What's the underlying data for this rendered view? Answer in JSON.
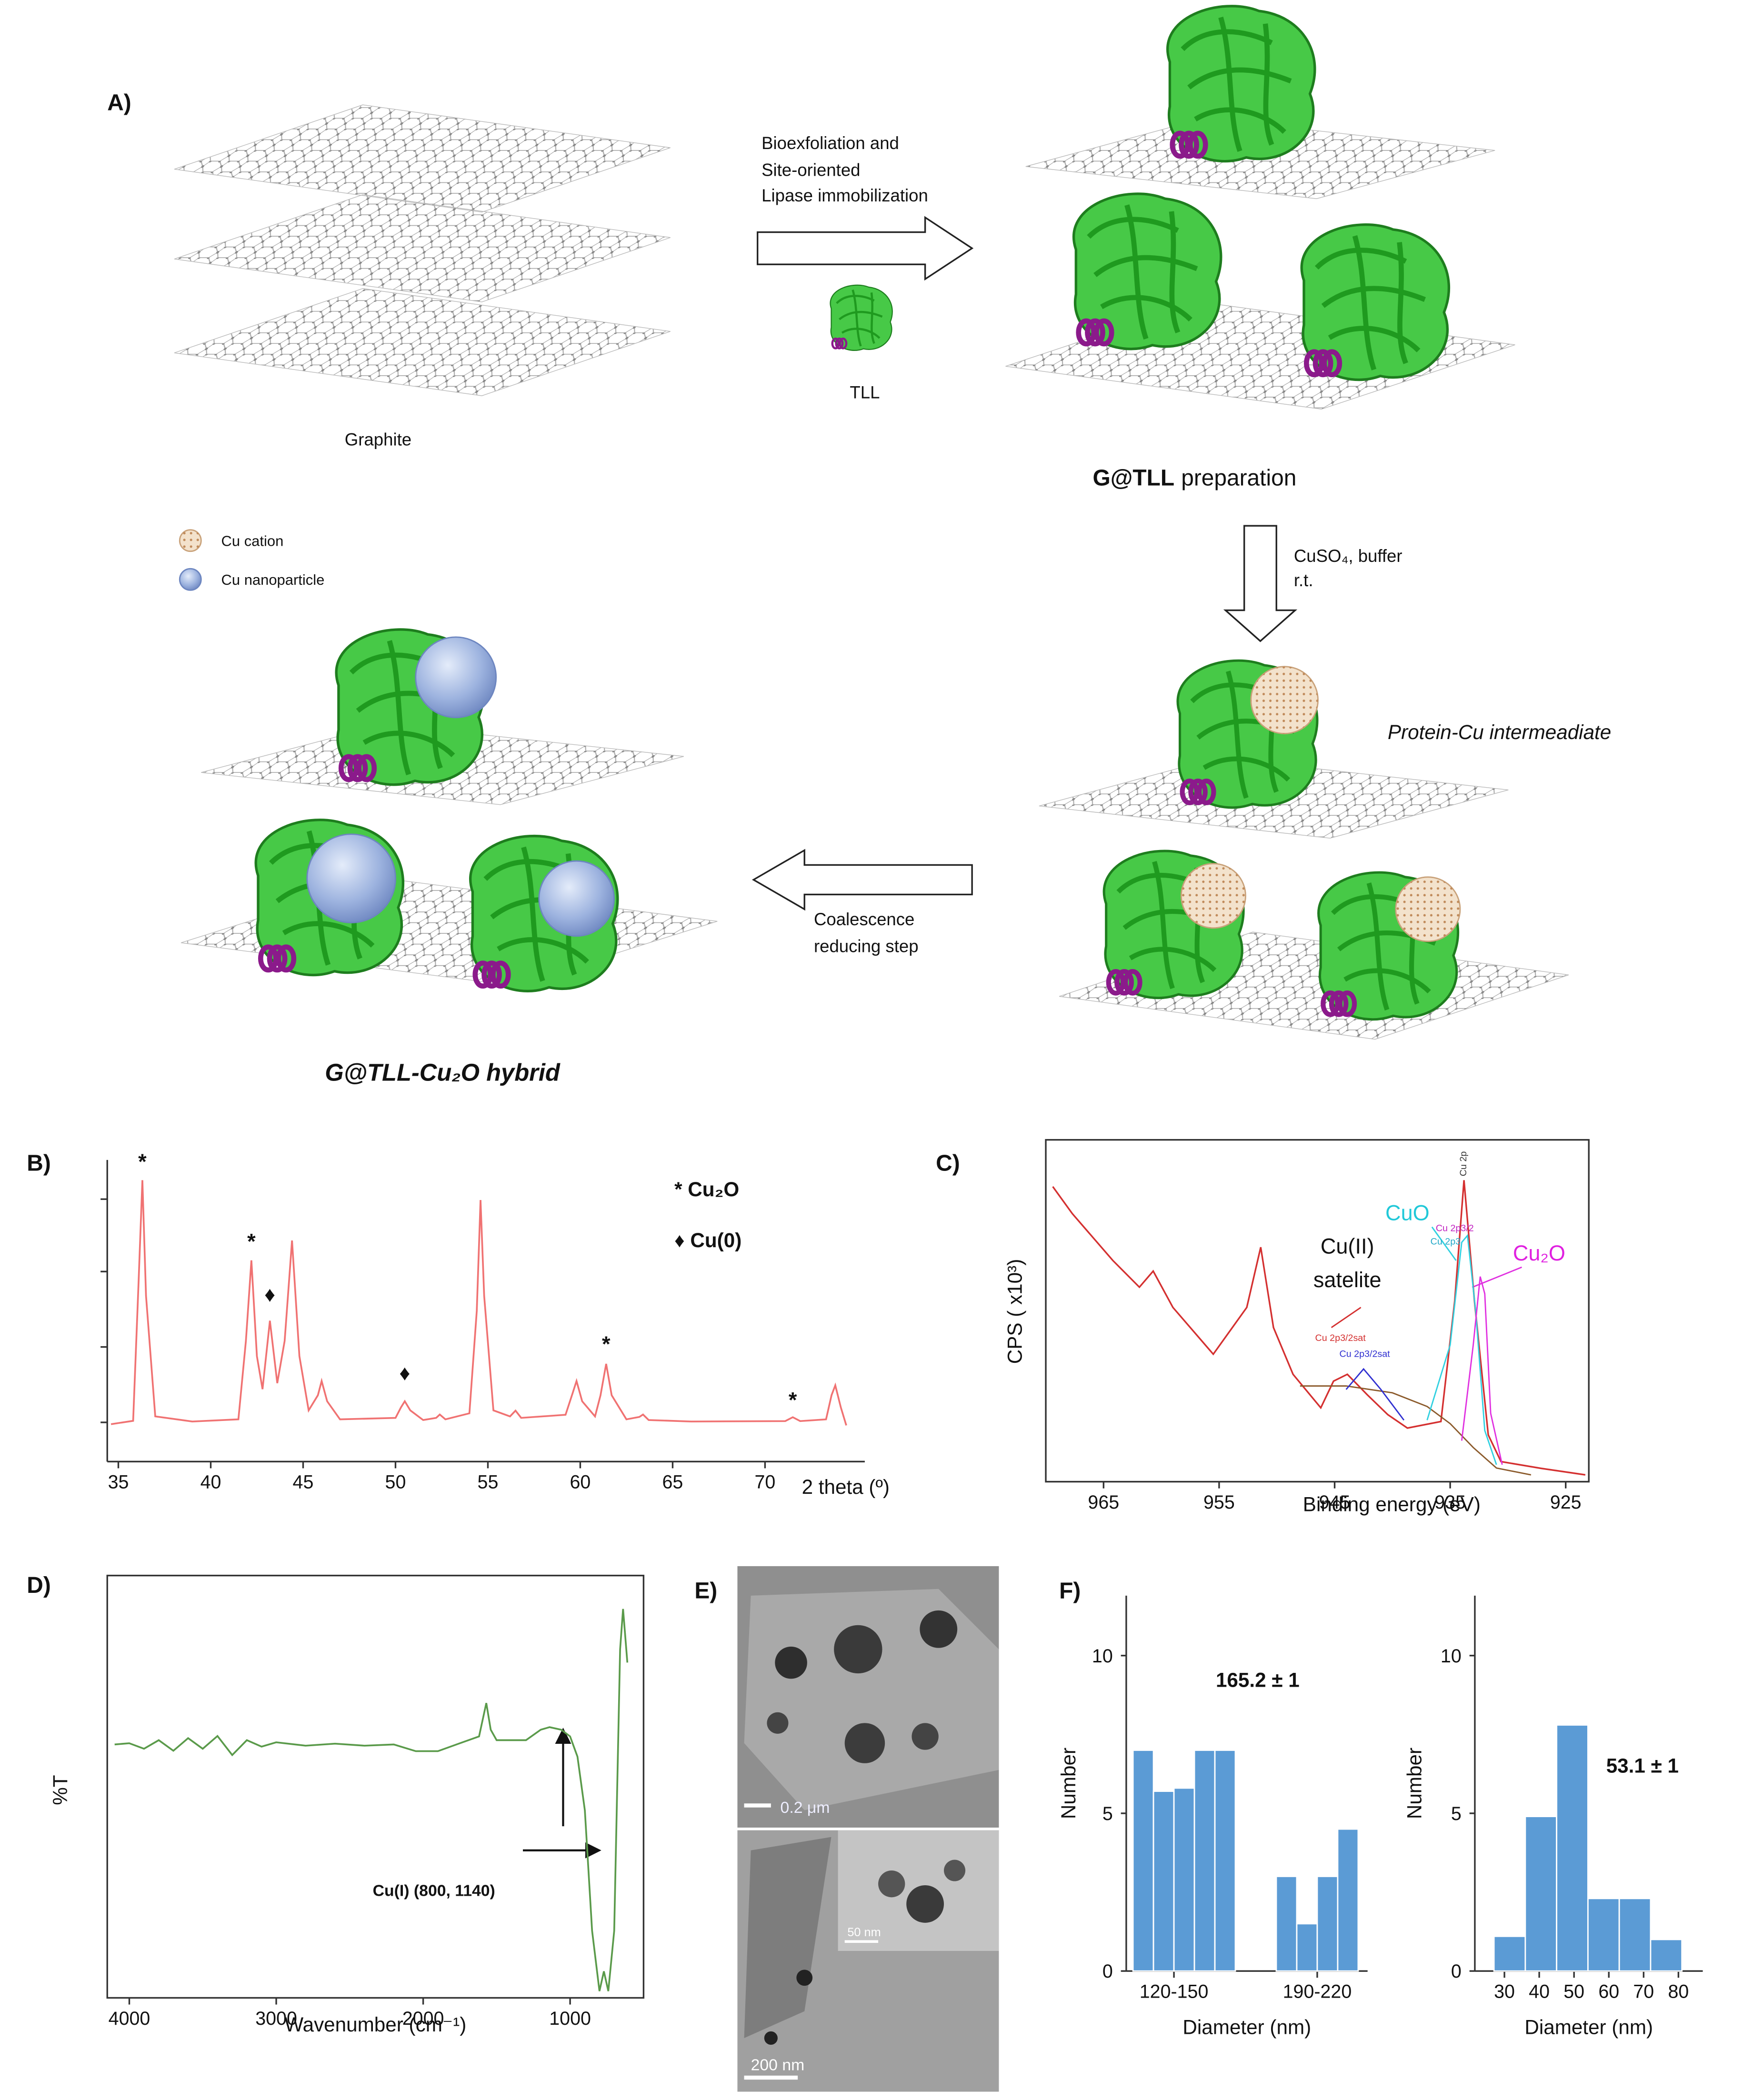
{
  "panel_labels": {
    "a": "A)",
    "b": "B)",
    "c": "C)",
    "d": "D)",
    "e": "E)",
    "f": "F)"
  },
  "scheme": {
    "graphite": "Graphite",
    "step1": [
      "Bioexfoliation and",
      "Site-oriented",
      "Lipase immobilization"
    ],
    "tll": "TLL",
    "gtll_bold": "G@TLL",
    "gtll_rest": "preparation",
    "legend": [
      "Cu cation",
      "Cu nanoparticle"
    ],
    "step2": [
      "CuSO₄, buffer",
      "r.t."
    ],
    "intermediate": "Protein-Cu intermeadiate",
    "step3": [
      "Coalescence",
      "reducing step"
    ],
    "hybrid": "G@TLL-Cu₂O hybrid"
  },
  "tem": {
    "scale_bars": [
      "0.2 μm",
      "50 nm",
      "200 nm"
    ]
  },
  "chart_data": [
    {
      "type": "line",
      "color": "#f07272",
      "x": [
        34.6,
        35.8,
        36.1,
        36.3,
        36.5,
        37,
        39,
        41.5,
        41.9,
        42.2,
        42.5,
        42.8,
        43.2,
        43.6,
        44,
        44.4,
        44.8,
        45.3,
        45.8,
        46,
        46.3,
        47,
        50,
        50.3,
        50.5,
        50.8,
        51.5,
        52.2,
        52.4,
        52.7,
        54,
        54.4,
        54.6,
        54.8,
        55.3,
        56.2,
        56.5,
        56.8,
        59.2,
        59.6,
        59.8,
        60.1,
        60.8,
        61.1,
        61.4,
        61.7,
        62.5,
        63.2,
        63.4,
        63.7,
        66,
        71.1,
        71.5,
        71.9,
        73.3,
        73.6,
        73.8,
        74.1,
        74.4
      ],
      "values": [
        12.4,
        13.5,
        60,
        93.3,
        55,
        15,
        13.3,
        14,
        40,
        66.7,
        35,
        24,
        46.7,
        26,
        40,
        73.3,
        35,
        17,
        22,
        26.7,
        20,
        14,
        14.5,
        18,
        20,
        17,
        13.8,
        14.5,
        15.6,
        14,
        16,
        50,
        86.7,
        55,
        17,
        15,
        16.9,
        14.5,
        15.5,
        23,
        26.7,
        20,
        15,
        22,
        32.4,
        22,
        14,
        14.8,
        15.6,
        13.8,
        13.3,
        13.4,
        14.7,
        13.4,
        14,
        22,
        25.3,
        18,
        12
      ],
      "xlim": [
        34.4,
        75.4
      ],
      "ylim": [
        0,
        100
      ],
      "xticks": [
        35,
        40,
        45,
        50,
        55,
        60,
        65,
        70
      ],
      "xlabel": "2 theta (º)",
      "legend": [
        "* Cu₂O",
        "♦ Cu(0)"
      ],
      "annotations": [
        {
          "text": "*",
          "x": 36.3,
          "y": 97
        },
        {
          "text": "*",
          "x": 42.2,
          "y": 70.5
        },
        {
          "text": "♦",
          "x": 43.2,
          "y": 53
        },
        {
          "text": "♦",
          "x": 50.5,
          "y": 27
        },
        {
          "text": "*",
          "x": 61.4,
          "y": 36.5
        },
        {
          "text": "*",
          "x": 71.5,
          "y": 18
        }
      ]
    },
    {
      "type": "line",
      "series": [
        {
          "color": "#d43030",
          "x": [
            969.4,
            967.7,
            964.2,
            961.9,
            960.7,
            959.0,
            955.5,
            952.6,
            951.4,
            950.3,
            948.6,
            946.2,
            945.1,
            943.9,
            942.2,
            940.4,
            938.7,
            935.8,
            934.6,
            933.8,
            932.9,
            931.7,
            930.6,
            927.1,
            923.3
          ],
          "values": [
            86.3,
            78.4,
            64.7,
            56.9,
            61.6,
            51.0,
            37.3,
            51.0,
            68.6,
            45.1,
            31.4,
            21.6,
            29.4,
            31.4,
            25.5,
            19.6,
            15.7,
            17.6,
            52.9,
            88.2,
            52.9,
            13.7,
            5.9,
            3.9,
            2.0
          ]
        },
        {
          "color": "#8b5a2b",
          "x": [
            948,
            944,
            940,
            937,
            935,
            933,
            931,
            928
          ],
          "values": [
            28,
            28,
            26,
            22,
            17,
            10,
            4,
            2
          ]
        },
        {
          "color": "#30d0e0",
          "x": [
            937,
            935,
            934,
            933.5,
            932.8,
            932,
            931
          ],
          "values": [
            18,
            40,
            70,
            72,
            50,
            15,
            5
          ]
        },
        {
          "color": "#e030e0",
          "x": [
            934,
            933,
            932.4,
            932,
            931.5,
            930.5
          ],
          "values": [
            12,
            40,
            60,
            55,
            20,
            5
          ]
        },
        {
          "color": "#3030d0",
          "x": [
            944,
            942.5,
            941,
            939
          ],
          "values": [
            27,
            33,
            27,
            18
          ]
        }
      ],
      "xlim": [
        970,
        923
      ],
      "ylim": [
        0,
        100
      ],
      "xticks": [
        965,
        955,
        945,
        935,
        925
      ],
      "xlabel": "Binding energy (eV)",
      "ylabel": "CPS ( x10³)",
      "annotations": [
        {
          "text": "Cu 2p",
          "x": 933.6,
          "y": 93,
          "color": "#333333",
          "size": "small"
        },
        {
          "text": "CuO",
          "x": 938.7,
          "y": 76.5,
          "color": "#20c8d8",
          "size": "large"
        },
        {
          "text": "Cu₂O",
          "x": 927.3,
          "y": 64.7,
          "color": "#e020e0",
          "size": "large"
        },
        {
          "text": "Cu(II)",
          "x": 943.9,
          "y": 66.7,
          "color": "#111111",
          "size": "large"
        },
        {
          "text": "satelite",
          "x": 943.9,
          "y": 56.9,
          "color": "#111111",
          "size": "large"
        },
        {
          "text": "Cu 2p3/2",
          "x": 934.6,
          "y": 73.3,
          "color": "#c020c0",
          "size": "small"
        },
        {
          "text": "Cu 2p3",
          "x": 935.4,
          "y": 69.4,
          "color": "#20a8c8",
          "size": "small"
        },
        {
          "text": "Cu 2p3/2sat",
          "x": 944.5,
          "y": 41.2,
          "color": "#d43030",
          "size": "small"
        },
        {
          "text": "Cu 2p3/2sat",
          "x": 942.4,
          "y": 36.5,
          "color": "#3030d0",
          "size": "small"
        }
      ]
    },
    {
      "type": "line",
      "color": "#5a9a4a",
      "x": [
        4100,
        4000,
        3900,
        3800,
        3700,
        3600,
        3500,
        3400,
        3300,
        3200,
        3100,
        3000,
        2800,
        2600,
        2400,
        2200,
        2050,
        1900,
        1750,
        1620,
        1570,
        1540,
        1500,
        1300,
        1200,
        1140,
        1060,
        1000,
        950,
        900,
        850,
        800,
        770,
        740,
        700,
        660,
        640,
        610
      ],
      "values": [
        60,
        60.3,
        59,
        61,
        58.5,
        61.5,
        59,
        62,
        57.5,
        61,
        59.5,
        60.5,
        59.7,
        60.2,
        59.7,
        60,
        58.4,
        58.4,
        60.3,
        61.9,
        69.8,
        63.5,
        61,
        61,
        63.5,
        64.1,
        63.5,
        61.9,
        57.1,
        44.4,
        15.9,
        1.6,
        6.3,
        1.6,
        15.9,
        82.5,
        92.1,
        79.4
      ],
      "xlim": [
        4150,
        500
      ],
      "ylim": [
        0,
        100
      ],
      "xticks": [
        4000,
        3000,
        2000,
        1000
      ],
      "xlabel": "Wavenumber (cm⁻¹)",
      "ylabel": "%T",
      "annotations": [
        {
          "text": "Cu(I) (800, 1140)"
        }
      ]
    },
    {
      "type": "histogram",
      "color": "#5b9bd5",
      "bins": [
        110,
        120,
        130,
        140,
        150,
        160,
        170,
        180,
        190,
        200,
        210,
        220
      ],
      "values": [
        7,
        5.7,
        5.8,
        7,
        7,
        0,
        0,
        3,
        1.5,
        3,
        4.5
      ],
      "xlim": [
        106.7,
        224.6
      ],
      "ylim": [
        0,
        11.9
      ],
      "xticks": [
        {
          "value": 130,
          "label": "120-150"
        },
        {
          "value": 200,
          "label": "190-220"
        }
      ],
      "yticks": [
        0,
        5,
        10
      ],
      "xlabel": "Diameter (nm)",
      "ylabel": "Number",
      "annotations": [
        {
          "text": "165.2 ± 1"
        }
      ]
    },
    {
      "type": "histogram",
      "color": "#5b9bd5",
      "bins": [
        27,
        36,
        45,
        54,
        63,
        72,
        81
      ],
      "values": [
        1.1,
        4.9,
        7.8,
        2.3,
        2.3,
        1
      ],
      "xlim": [
        21.5,
        87
      ],
      "ylim": [
        0,
        11.9
      ],
      "xticks": [
        30,
        40,
        50,
        60,
        70,
        80
      ],
      "yticks": [
        0,
        5,
        10
      ],
      "xlabel": "Diameter (nm)",
      "ylabel": "Number",
      "annotations": [
        {
          "text": "53.1 ± 1"
        }
      ]
    }
  ]
}
